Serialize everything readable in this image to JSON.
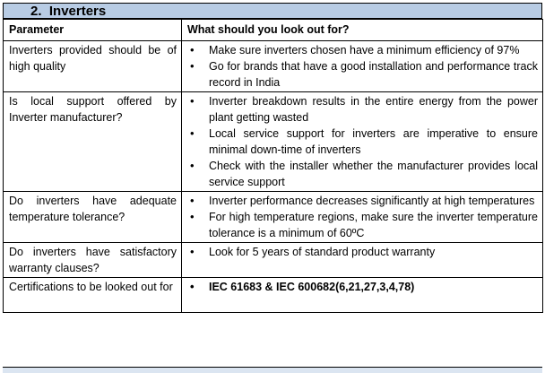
{
  "section": {
    "number": "2.",
    "title": "Inverters"
  },
  "columns": {
    "parameter": "Parameter",
    "lookout": "What should you look out for?"
  },
  "rows": [
    {
      "parameter": "Inverters provided should be of high quality",
      "points": [
        "Make sure inverters chosen have a minimum efficiency of 97%",
        "Go for brands that have a good installation and performance track record in India"
      ]
    },
    {
      "parameter": "Is local support offered by Inverter manufacturer?",
      "points": [
        "Inverter breakdown results in the entire energy from the power plant getting wasted",
        "Local service support for inverters are imperative to ensure minimal down-time of inverters",
        "Check with the installer whether the manufacturer provides local service support"
      ]
    },
    {
      "parameter": "Do inverters have adequate temperature tolerance?",
      "points": [
        "Inverter performance decreases significantly at high temperatures",
        "For high temperature regions, make sure the inverter temperature tolerance is a minimum of 60ºC"
      ]
    },
    {
      "parameter": "Do inverters have satisfactory warranty clauses?",
      "points": [
        "Look for 5 years of standard product warranty"
      ]
    },
    {
      "parameter": "Certifications to be looked out for",
      "points": [
        "IEC 61683 & IEC 600682(6,21,27,3,4,78)"
      ]
    }
  ]
}
